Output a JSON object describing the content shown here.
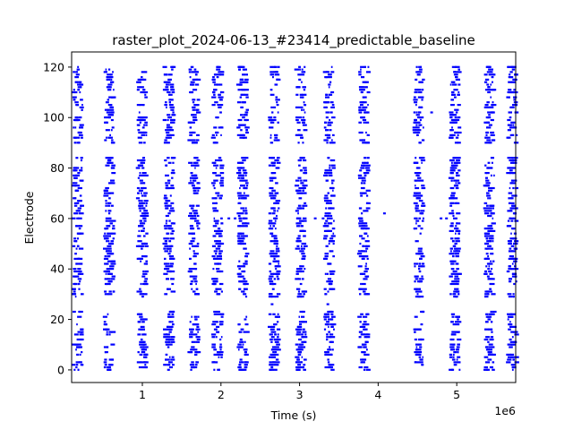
{
  "chart_data": {
    "type": "scatter",
    "title": "raster_plot_2024-06-13_#23414_predictable_baseline",
    "xlabel": "Time (s)",
    "ylabel": "Electrode",
    "x_offset_label": "1e6",
    "xlim": [
      100000,
      5750000
    ],
    "ylim": [
      -5,
      126
    ],
    "x_ticks": [
      1000000,
      2000000,
      3000000,
      4000000,
      5000000
    ],
    "x_tick_labels": [
      "1",
      "2",
      "3",
      "4",
      "5"
    ],
    "y_ticks": [
      0,
      20,
      40,
      60,
      80,
      100,
      120
    ],
    "y_tick_labels": [
      "0",
      "20",
      "40",
      "60",
      "80",
      "100",
      "120"
    ],
    "marker_color": "#0000ff",
    "burst_times": [
      180000,
      580000,
      1000000,
      1340000,
      1660000,
      1960000,
      2280000,
      2680000,
      3020000,
      3380000,
      3820000,
      4520000,
      4980000,
      5420000,
      5710000
    ],
    "active_electrode_ranges": [
      [
        0,
        23
      ],
      [
        29,
        32
      ],
      [
        34,
        84
      ],
      [
        90,
        120
      ]
    ],
    "isolated_spikes": [
      {
        "x": 230000,
        "y": 96
      },
      {
        "x": 230000,
        "y": 92
      },
      {
        "x": 2100000,
        "y": 60
      },
      {
        "x": 2180000,
        "y": 60
      },
      {
        "x": 2240000,
        "y": 60
      },
      {
        "x": 2650000,
        "y": 26
      },
      {
        "x": 3200000,
        "y": 60
      },
      {
        "x": 3300000,
        "y": 60
      },
      {
        "x": 3360000,
        "y": 26
      },
      {
        "x": 4080000,
        "y": 62
      },
      {
        "x": 4680000,
        "y": 102
      },
      {
        "x": 4800000,
        "y": 60
      },
      {
        "x": 4870000,
        "y": 60
      }
    ]
  }
}
